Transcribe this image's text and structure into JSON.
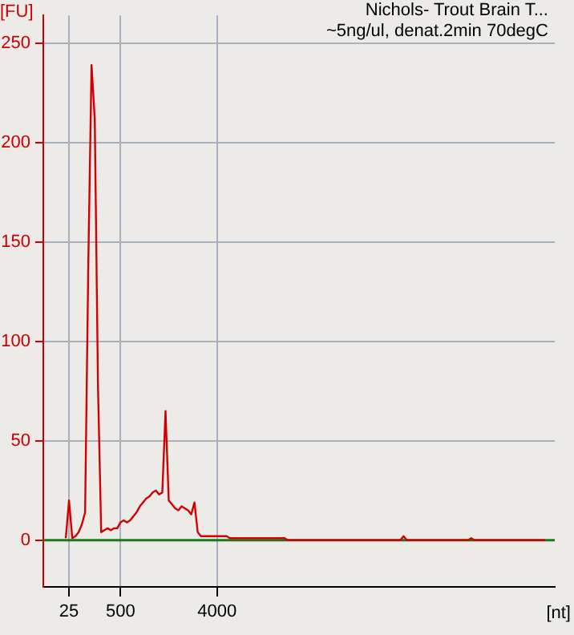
{
  "chart_data": {
    "type": "line",
    "title": "Nichols- Trout Brain T...",
    "subtitle": "~5ng/ul, denat.2min 70degC",
    "xlabel": "[nt]",
    "ylabel": "[FU]",
    "categories": [
      null,
      null,
      null,
      null,
      null,
      null,
      null,
      null,
      "25",
      null,
      null,
      null,
      null,
      null,
      null,
      null,
      null,
      null,
      null,
      null,
      null,
      null,
      null,
      null,
      "500",
      null,
      null,
      null,
      null,
      null,
      null,
      null,
      null,
      null,
      null,
      null,
      null,
      null,
      null,
      null,
      null,
      null,
      null,
      null,
      null,
      null,
      null,
      null,
      null,
      null,
      null,
      null,
      null,
      null,
      "4000",
      null,
      null,
      null,
      null,
      null,
      null,
      null,
      null,
      null,
      null,
      null,
      null,
      null,
      null,
      null,
      null,
      null,
      null,
      null,
      null,
      null,
      null,
      null,
      null,
      null,
      null,
      null,
      null,
      null,
      null,
      null,
      null,
      null,
      null,
      null,
      null,
      null,
      null,
      null,
      null,
      null,
      null,
      null,
      null,
      null,
      null,
      null,
      null,
      null,
      null,
      null,
      null,
      null,
      null,
      null,
      null,
      null,
      null,
      null,
      null,
      null,
      null,
      null,
      null,
      null,
      null,
      null,
      null,
      null,
      null,
      null,
      null,
      null,
      null,
      null,
      null,
      null,
      null,
      null,
      null,
      null,
      null,
      null,
      null,
      null,
      null,
      null,
      null,
      null,
      null,
      null,
      null,
      null,
      null,
      null,
      null,
      null,
      null,
      null,
      null,
      null,
      null,
      null,
      null,
      null
    ],
    "series": [
      {
        "color": "#d40000",
        "values": [
          null,
          null,
          null,
          null,
          null,
          null,
          null,
          1,
          20,
          1,
          2,
          4,
          8,
          14,
          140,
          239,
          212,
          78,
          4,
          5,
          6,
          5,
          6,
          6,
          9,
          10,
          9,
          10,
          12,
          14,
          17,
          19,
          21,
          22,
          24,
          25,
          23,
          24,
          65,
          20,
          18,
          16,
          15,
          17,
          16,
          15,
          13,
          19,
          4,
          2,
          2,
          2,
          2,
          2,
          2,
          2,
          2,
          2,
          1,
          1,
          1,
          1,
          1,
          1,
          1,
          1,
          1,
          1,
          1,
          1,
          1,
          1,
          1,
          1,
          1,
          1,
          0,
          0,
          0,
          0,
          0,
          0,
          0,
          0,
          0,
          0,
          0,
          0,
          0,
          0,
          0,
          0,
          0,
          0,
          0,
          0,
          0,
          0,
          0,
          0,
          0,
          0,
          0,
          0,
          0,
          0,
          0,
          0,
          0,
          0,
          0,
          0,
          2,
          0,
          0,
          0,
          0,
          0,
          0,
          0,
          0,
          0,
          0,
          0,
          0,
          0,
          0,
          0,
          0,
          0,
          0,
          0,
          0,
          1,
          0,
          0,
          0,
          0,
          0,
          0,
          0,
          0,
          0,
          0,
          0,
          0,
          0,
          0,
          0,
          0,
          0,
          0,
          0,
          0,
          0,
          0,
          0,
          null,
          null,
          null
        ]
      }
    ],
    "ylim": [
      -23.5,
      264
    ],
    "yticks": [
      0,
      50,
      100,
      150,
      200,
      250
    ],
    "grid": true,
    "legend": false,
    "marker": "none",
    "line_style": "solid",
    "ref_lines": [
      {
        "axis": "y",
        "value": 0,
        "color": "#1a7a1a"
      }
    ]
  }
}
